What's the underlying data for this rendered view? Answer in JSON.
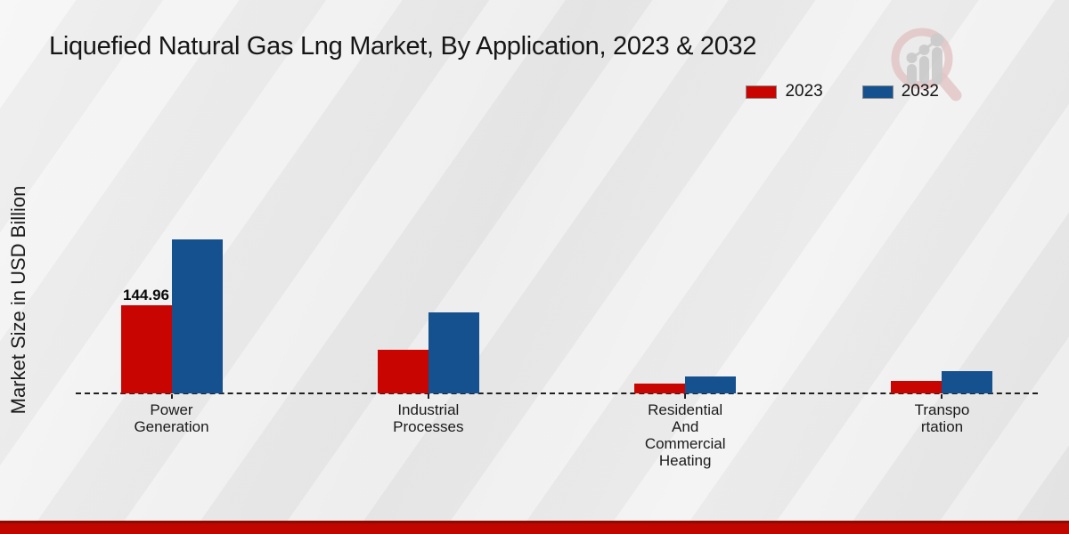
{
  "title": "Liquefied Natural Gas Lng Market, By Application, 2023 & 2032",
  "legend": {
    "items": [
      {
        "label": "2023",
        "color": "#c90502"
      },
      {
        "label": "2032",
        "color": "#15508f"
      }
    ]
  },
  "colors": {
    "bar_2023": "#c90502",
    "bar_2032": "#15508f",
    "footer_bar": "#c10600",
    "footer_bar_edge": "#8e0b02",
    "baseline": "#1f1f1f",
    "background": "#ececec"
  },
  "watermark_icon": "magnifier-growth-chart-logo",
  "chart_data": {
    "type": "bar",
    "title": "Liquefied Natural Gas Lng Market, By Application, 2023 & 2032",
    "xlabel": "",
    "ylabel": "Market Size in USD Billion",
    "categories": [
      "Power Generation",
      "Industrial Processes",
      "Residential And Commercial Heating",
      "Transportation"
    ],
    "category_display_lines": [
      [
        "Power",
        "Generation"
      ],
      [
        "Industrial",
        "Processes"
      ],
      [
        "Residential",
        "And",
        "Commercial",
        "Heating"
      ],
      [
        "Transpo",
        "rtation"
      ]
    ],
    "series": [
      {
        "name": "2023",
        "color": "#c90502",
        "values": [
          144.96,
          72,
          16,
          20
        ],
        "labels": [
          "144.96",
          "",
          "",
          ""
        ]
      },
      {
        "name": "2032",
        "color": "#15508f",
        "values": [
          253.3,
          133,
          28,
          37
        ],
        "labels": [
          "",
          "",
          "",
          ""
        ]
      }
    ],
    "ylim": [
      0,
      280
    ],
    "grid": false,
    "baseline_style": "dashed",
    "legend_position": "top-right"
  }
}
